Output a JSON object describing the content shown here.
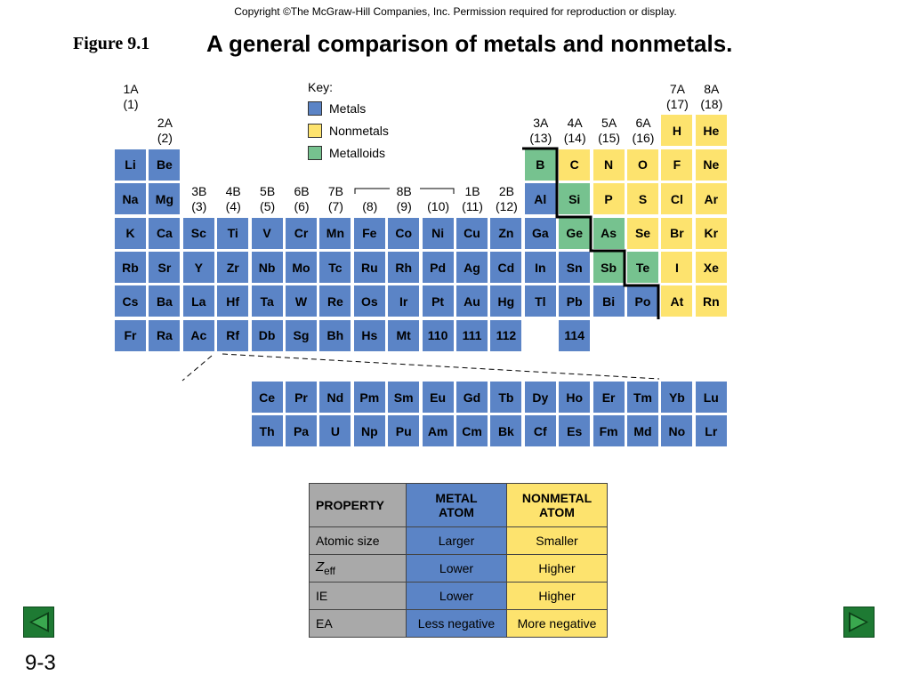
{
  "copyright": "Copyright ©The McGraw-Hill Companies, Inc.  Permission required for reproduction or display.",
  "figure_label": "Figure 9.1",
  "title": "A general comparison of metals and nonmetals.",
  "key": {
    "title": "Key:",
    "items": [
      {
        "label": "Metals",
        "color": "#5b84c6"
      },
      {
        "label": "Nonmetals",
        "color": "#fde36e"
      },
      {
        "label": "Metalloids",
        "color": "#76c28f"
      }
    ]
  },
  "colors": {
    "metal": "#5b84c6",
    "nonmetal": "#fde36e",
    "metalloid": "#76c28f",
    "property": "#a9a9a9"
  },
  "group_headers": [
    {
      "col": 0,
      "row": 0,
      "line1": "1A",
      "line2": "(1)"
    },
    {
      "col": 1,
      "row": 1,
      "line1": "2A",
      "line2": "(2)"
    },
    {
      "col": 2,
      "row": 3,
      "line1": "3B",
      "line2": "(3)"
    },
    {
      "col": 3,
      "row": 3,
      "line1": "4B",
      "line2": "(4)"
    },
    {
      "col": 4,
      "row": 3,
      "line1": "5B",
      "line2": "(5)"
    },
    {
      "col": 5,
      "row": 3,
      "line1": "6B",
      "line2": "(6)"
    },
    {
      "col": 6,
      "row": 3,
      "line1": "7B",
      "line2": "(7)"
    },
    {
      "col": 7,
      "row": 3,
      "line1": "",
      "line2": "(8)"
    },
    {
      "col": 8,
      "row": 3,
      "line1": "8B",
      "line2": "(9)"
    },
    {
      "col": 9,
      "row": 3,
      "line1": "",
      "line2": "(10)"
    },
    {
      "col": 10,
      "row": 3,
      "line1": "1B",
      "line2": "(11)"
    },
    {
      "col": 11,
      "row": 3,
      "line1": "2B",
      "line2": "(12)"
    },
    {
      "col": 12,
      "row": 1,
      "line1": "3A",
      "line2": "(13)"
    },
    {
      "col": 13,
      "row": 1,
      "line1": "4A",
      "line2": "(14)"
    },
    {
      "col": 14,
      "row": 1,
      "line1": "5A",
      "line2": "(15)"
    },
    {
      "col": 15,
      "row": 1,
      "line1": "6A",
      "line2": "(16)"
    },
    {
      "col": 16,
      "row": 0,
      "line1": "7A",
      "line2": "(17)"
    },
    {
      "col": 17,
      "row": 0,
      "line1": "8A",
      "line2": "(18)"
    }
  ],
  "elements": [
    {
      "s": "H",
      "col": 16,
      "row": 1,
      "t": "n"
    },
    {
      "s": "He",
      "col": 17,
      "row": 1,
      "t": "n"
    },
    {
      "s": "Li",
      "col": 0,
      "row": 2,
      "t": "m"
    },
    {
      "s": "Be",
      "col": 1,
      "row": 2,
      "t": "m"
    },
    {
      "s": "B",
      "col": 12,
      "row": 2,
      "t": "d"
    },
    {
      "s": "C",
      "col": 13,
      "row": 2,
      "t": "n"
    },
    {
      "s": "N",
      "col": 14,
      "row": 2,
      "t": "n"
    },
    {
      "s": "O",
      "col": 15,
      "row": 2,
      "t": "n"
    },
    {
      "s": "F",
      "col": 16,
      "row": 2,
      "t": "n"
    },
    {
      "s": "Ne",
      "col": 17,
      "row": 2,
      "t": "n"
    },
    {
      "s": "Na",
      "col": 0,
      "row": 3,
      "t": "m"
    },
    {
      "s": "Mg",
      "col": 1,
      "row": 3,
      "t": "m"
    },
    {
      "s": "Al",
      "col": 12,
      "row": 3,
      "t": "m"
    },
    {
      "s": "Si",
      "col": 13,
      "row": 3,
      "t": "d"
    },
    {
      "s": "P",
      "col": 14,
      "row": 3,
      "t": "n"
    },
    {
      "s": "S",
      "col": 15,
      "row": 3,
      "t": "n"
    },
    {
      "s": "Cl",
      "col": 16,
      "row": 3,
      "t": "n"
    },
    {
      "s": "Ar",
      "col": 17,
      "row": 3,
      "t": "n"
    },
    {
      "s": "K",
      "col": 0,
      "row": 4,
      "t": "m"
    },
    {
      "s": "Ca",
      "col": 1,
      "row": 4,
      "t": "m"
    },
    {
      "s": "Sc",
      "col": 2,
      "row": 4,
      "t": "m"
    },
    {
      "s": "Ti",
      "col": 3,
      "row": 4,
      "t": "m"
    },
    {
      "s": "V",
      "col": 4,
      "row": 4,
      "t": "m"
    },
    {
      "s": "Cr",
      "col": 5,
      "row": 4,
      "t": "m"
    },
    {
      "s": "Mn",
      "col": 6,
      "row": 4,
      "t": "m"
    },
    {
      "s": "Fe",
      "col": 7,
      "row": 4,
      "t": "m"
    },
    {
      "s": "Co",
      "col": 8,
      "row": 4,
      "t": "m"
    },
    {
      "s": "Ni",
      "col": 9,
      "row": 4,
      "t": "m"
    },
    {
      "s": "Cu",
      "col": 10,
      "row": 4,
      "t": "m"
    },
    {
      "s": "Zn",
      "col": 11,
      "row": 4,
      "t": "m"
    },
    {
      "s": "Ga",
      "col": 12,
      "row": 4,
      "t": "m"
    },
    {
      "s": "Ge",
      "col": 13,
      "row": 4,
      "t": "d"
    },
    {
      "s": "As",
      "col": 14,
      "row": 4,
      "t": "d"
    },
    {
      "s": "Se",
      "col": 15,
      "row": 4,
      "t": "n"
    },
    {
      "s": "Br",
      "col": 16,
      "row": 4,
      "t": "n"
    },
    {
      "s": "Kr",
      "col": 17,
      "row": 4,
      "t": "n"
    },
    {
      "s": "Rb",
      "col": 0,
      "row": 5,
      "t": "m"
    },
    {
      "s": "Sr",
      "col": 1,
      "row": 5,
      "t": "m"
    },
    {
      "s": "Y",
      "col": 2,
      "row": 5,
      "t": "m"
    },
    {
      "s": "Zr",
      "col": 3,
      "row": 5,
      "t": "m"
    },
    {
      "s": "Nb",
      "col": 4,
      "row": 5,
      "t": "m"
    },
    {
      "s": "Mo",
      "col": 5,
      "row": 5,
      "t": "m"
    },
    {
      "s": "Tc",
      "col": 6,
      "row": 5,
      "t": "m"
    },
    {
      "s": "Ru",
      "col": 7,
      "row": 5,
      "t": "m"
    },
    {
      "s": "Rh",
      "col": 8,
      "row": 5,
      "t": "m"
    },
    {
      "s": "Pd",
      "col": 9,
      "row": 5,
      "t": "m"
    },
    {
      "s": "Ag",
      "col": 10,
      "row": 5,
      "t": "m"
    },
    {
      "s": "Cd",
      "col": 11,
      "row": 5,
      "t": "m"
    },
    {
      "s": "In",
      "col": 12,
      "row": 5,
      "t": "m"
    },
    {
      "s": "Sn",
      "col": 13,
      "row": 5,
      "t": "m"
    },
    {
      "s": "Sb",
      "col": 14,
      "row": 5,
      "t": "d"
    },
    {
      "s": "Te",
      "col": 15,
      "row": 5,
      "t": "d"
    },
    {
      "s": "I",
      "col": 16,
      "row": 5,
      "t": "n"
    },
    {
      "s": "Xe",
      "col": 17,
      "row": 5,
      "t": "n"
    },
    {
      "s": "Cs",
      "col": 0,
      "row": 6,
      "t": "m"
    },
    {
      "s": "Ba",
      "col": 1,
      "row": 6,
      "t": "m"
    },
    {
      "s": "La",
      "col": 2,
      "row": 6,
      "t": "m"
    },
    {
      "s": "Hf",
      "col": 3,
      "row": 6,
      "t": "m"
    },
    {
      "s": "Ta",
      "col": 4,
      "row": 6,
      "t": "m"
    },
    {
      "s": "W",
      "col": 5,
      "row": 6,
      "t": "m"
    },
    {
      "s": "Re",
      "col": 6,
      "row": 6,
      "t": "m"
    },
    {
      "s": "Os",
      "col": 7,
      "row": 6,
      "t": "m"
    },
    {
      "s": "Ir",
      "col": 8,
      "row": 6,
      "t": "m"
    },
    {
      "s": "Pt",
      "col": 9,
      "row": 6,
      "t": "m"
    },
    {
      "s": "Au",
      "col": 10,
      "row": 6,
      "t": "m"
    },
    {
      "s": "Hg",
      "col": 11,
      "row": 6,
      "t": "m"
    },
    {
      "s": "Tl",
      "col": 12,
      "row": 6,
      "t": "m"
    },
    {
      "s": "Pb",
      "col": 13,
      "row": 6,
      "t": "m"
    },
    {
      "s": "Bi",
      "col": 14,
      "row": 6,
      "t": "m"
    },
    {
      "s": "Po",
      "col": 15,
      "row": 6,
      "t": "m"
    },
    {
      "s": "At",
      "col": 16,
      "row": 6,
      "t": "n"
    },
    {
      "s": "Rn",
      "col": 17,
      "row": 6,
      "t": "n"
    },
    {
      "s": "Fr",
      "col": 0,
      "row": 7,
      "t": "m"
    },
    {
      "s": "Ra",
      "col": 1,
      "row": 7,
      "t": "m"
    },
    {
      "s": "Ac",
      "col": 2,
      "row": 7,
      "t": "m"
    },
    {
      "s": "Rf",
      "col": 3,
      "row": 7,
      "t": "m"
    },
    {
      "s": "Db",
      "col": 4,
      "row": 7,
      "t": "m"
    },
    {
      "s": "Sg",
      "col": 5,
      "row": 7,
      "t": "m"
    },
    {
      "s": "Bh",
      "col": 6,
      "row": 7,
      "t": "m"
    },
    {
      "s": "Hs",
      "col": 7,
      "row": 7,
      "t": "m"
    },
    {
      "s": "Mt",
      "col": 8,
      "row": 7,
      "t": "m"
    },
    {
      "s": "110",
      "col": 9,
      "row": 7,
      "t": "m"
    },
    {
      "s": "111",
      "col": 10,
      "row": 7,
      "t": "m"
    },
    {
      "s": "112",
      "col": 11,
      "row": 7,
      "t": "m"
    },
    {
      "s": "114",
      "col": 13,
      "row": 7,
      "t": "m"
    }
  ],
  "lanthanides": [
    "Ce",
    "Pr",
    "Nd",
    "Pm",
    "Sm",
    "Eu",
    "Gd",
    "Tb",
    "Dy",
    "Ho",
    "Er",
    "Tm",
    "Yb",
    "Lu"
  ],
  "actinides": [
    "Th",
    "Pa",
    "U",
    "Np",
    "Pu",
    "Am",
    "Cm",
    "Bk",
    "Cf",
    "Es",
    "Fm",
    "Md",
    "No",
    "Lr"
  ],
  "property_table": {
    "headers": {
      "property": "PROPERTY",
      "metal": [
        "METAL",
        "ATOM"
      ],
      "nonmetal": [
        "NONMETAL",
        "ATOM"
      ]
    },
    "rows": [
      {
        "property": "Atomic size",
        "metal": "Larger",
        "nonmetal": "Smaller"
      },
      {
        "property": "Z",
        "property_sub": "eff",
        "metal": "Lower",
        "nonmetal": "Higher"
      },
      {
        "property": "IE",
        "metal": "Lower",
        "nonmetal": "Higher"
      },
      {
        "property": "EA",
        "metal": "Less negative",
        "nonmetal": "More negative"
      }
    ]
  },
  "page_number": "9-3"
}
